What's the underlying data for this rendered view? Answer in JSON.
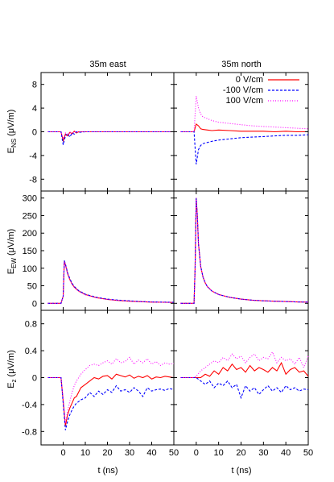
{
  "figure": {
    "column_titles": [
      "35m east",
      "35m north"
    ],
    "xlabel": "t (ns)",
    "xlim": [
      -10,
      50
    ],
    "xticks": [
      0,
      10,
      20,
      30,
      40,
      50
    ],
    "legend": {
      "position": "top-right of upper-right panel",
      "entries": [
        "0 V/cm",
        "-100 V/cm",
        "100 V/cm"
      ]
    },
    "series_styles": [
      {
        "name": "0 V/cm",
        "color": "#ff0000",
        "dash": "solid"
      },
      {
        "name": "-100 V/cm",
        "color": "#0000ff",
        "dash": "dashed"
      },
      {
        "name": "100 V/cm",
        "color": "#ff00ff",
        "dash": "dotted"
      }
    ]
  },
  "rows": [
    {
      "ylabel": "E",
      "ylabel_sub": "NS",
      "ylabel_unit": "(μV/m)",
      "ylim": [
        -10,
        10
      ],
      "yticks": [
        -8,
        -4,
        0,
        4,
        8
      ]
    },
    {
      "ylabel": "E",
      "ylabel_sub": "EW",
      "ylabel_unit": "(μV/m)",
      "ylim": [
        -20,
        320
      ],
      "yticks": [
        0,
        50,
        100,
        150,
        200,
        250,
        300
      ]
    },
    {
      "ylabel": "E",
      "ylabel_sub": "z",
      "ylabel_unit": "(μV/m)",
      "ylim": [
        -1,
        1
      ],
      "yticks": [
        -0.8,
        -0.4,
        0,
        0.4,
        0.8
      ]
    }
  ],
  "chart_data": [
    {
      "type": "line",
      "title": "35m east",
      "ylabel": "E_NS (μV/m)",
      "xlabel": "",
      "xlim": [
        -10,
        50
      ],
      "ylim": [
        -10,
        10
      ],
      "series": [
        {
          "name": "0 V/cm",
          "x": [
            -7,
            -1,
            0,
            1,
            2,
            3,
            4,
            5,
            6,
            7,
            10,
            15,
            20,
            30,
            40,
            50
          ],
          "y": [
            0,
            0,
            -1.5,
            -0.4,
            -0.7,
            -0.1,
            -0.3,
            0.1,
            -0.2,
            0,
            0,
            0,
            0,
            0,
            0,
            0
          ]
        },
        {
          "name": "-100 V/cm",
          "x": [
            -7,
            -1,
            0,
            1,
            2,
            3,
            4,
            5,
            6,
            7,
            10,
            15,
            20,
            30,
            40,
            50
          ],
          "y": [
            0,
            0,
            -2.2,
            -0.7,
            -0.3,
            -0.9,
            -0.2,
            -0.4,
            0,
            -0.1,
            0,
            0,
            0,
            0,
            0,
            0
          ]
        },
        {
          "name": "100 V/cm",
          "x": [
            -7,
            -1,
            0,
            1,
            2,
            3,
            4,
            5,
            6,
            7,
            10,
            15,
            20,
            30,
            40,
            50
          ],
          "y": [
            0,
            0,
            -1.2,
            -0.2,
            -0.5,
            0,
            -0.4,
            0.1,
            -0.1,
            0,
            0,
            0,
            0,
            0,
            0,
            0
          ]
        }
      ]
    },
    {
      "type": "line",
      "title": "35m north",
      "ylabel": "E_NS (μV/m)",
      "xlabel": "",
      "xlim": [
        -10,
        50
      ],
      "ylim": [
        -10,
        10
      ],
      "series": [
        {
          "name": "0 V/cm",
          "x": [
            -7,
            -1,
            0,
            1,
            2,
            3,
            5,
            7,
            10,
            15,
            20,
            25,
            30,
            35,
            40,
            45,
            50
          ],
          "y": [
            0,
            0,
            1.3,
            1.0,
            0.5,
            0.4,
            0.3,
            0.2,
            0.3,
            0.2,
            0.1,
            0.1,
            0.1,
            0,
            0.1,
            0,
            0
          ]
        },
        {
          "name": "-100 V/cm",
          "x": [
            -7,
            -1,
            0,
            1,
            2,
            3,
            5,
            7,
            10,
            15,
            20,
            25,
            30,
            35,
            40,
            45,
            50
          ],
          "y": [
            0,
            0,
            -5.5,
            -3.0,
            -2.3,
            -2.0,
            -1.8,
            -1.6,
            -1.4,
            -1.2,
            -1.0,
            -0.9,
            -0.8,
            -0.7,
            -0.6,
            -0.6,
            -0.5
          ]
        },
        {
          "name": "100 V/cm",
          "x": [
            -7,
            -1,
            0,
            1,
            2,
            3,
            5,
            7,
            10,
            15,
            20,
            25,
            30,
            35,
            40,
            45,
            50
          ],
          "y": [
            0,
            0,
            6.0,
            4.0,
            3.0,
            2.5,
            2.2,
            1.9,
            1.6,
            1.4,
            1.2,
            1.0,
            0.9,
            0.8,
            0.7,
            0.6,
            0.5
          ]
        }
      ]
    },
    {
      "type": "line",
      "title": "35m east",
      "ylabel": "E_EW (μV/m)",
      "xlabel": "",
      "xlim": [
        -10,
        50
      ],
      "ylim": [
        -20,
        320
      ],
      "series": [
        {
          "name": "0 V/cm",
          "x": [
            -7,
            -2,
            -1,
            0,
            0.5,
            1,
            2,
            3,
            4,
            5,
            7,
            10,
            15,
            20,
            25,
            30,
            35,
            40,
            45,
            50
          ],
          "y": [
            0,
            0,
            0,
            20,
            120,
            110,
            85,
            68,
            55,
            46,
            35,
            25,
            16,
            11,
            8,
            6,
            4.5,
            3.5,
            3,
            2.5
          ]
        },
        {
          "name": "-100 V/cm",
          "x": [
            -7,
            -2,
            -1,
            0,
            0.5,
            1,
            2,
            3,
            4,
            5,
            7,
            10,
            15,
            20,
            25,
            30,
            35,
            40,
            45,
            50
          ],
          "y": [
            0,
            0,
            0,
            20,
            122,
            112,
            87,
            70,
            57,
            48,
            36,
            26,
            17,
            12,
            9,
            7,
            5,
            4,
            3.5,
            3
          ]
        },
        {
          "name": "100 V/cm",
          "x": [
            -7,
            -2,
            -1,
            0,
            0.5,
            1,
            2,
            3,
            4,
            5,
            7,
            10,
            15,
            20,
            25,
            30,
            35,
            40,
            45,
            50
          ],
          "y": [
            0,
            0,
            0,
            20,
            119,
            108,
            83,
            66,
            54,
            45,
            34,
            24,
            16,
            11,
            8,
            6,
            4.5,
            3.5,
            3,
            2.5
          ]
        }
      ]
    },
    {
      "type": "line",
      "title": "35m north",
      "ylabel": "E_EW (μV/m)",
      "xlabel": "t (ns)",
      "xlim": [
        -10,
        50
      ],
      "ylim": [
        -20,
        320
      ],
      "series": [
        {
          "name": "0 V/cm",
          "x": [
            -7,
            -2,
            -1,
            -0.5,
            0,
            0.5,
            1,
            2,
            3,
            4,
            5,
            7,
            10,
            15,
            20,
            25,
            30,
            35,
            40,
            45,
            50
          ],
          "y": [
            0,
            0,
            0,
            100,
            300,
            250,
            170,
            105,
            75,
            58,
            47,
            35,
            25,
            17,
            12,
            9,
            7,
            6,
            5,
            4,
            3.5
          ]
        },
        {
          "name": "-100 V/cm",
          "x": [
            -7,
            -2,
            -1,
            -0.5,
            0,
            0.5,
            1,
            2,
            3,
            4,
            5,
            7,
            10,
            15,
            20,
            25,
            30,
            35,
            40,
            45,
            50
          ],
          "y": [
            0,
            0,
            0,
            100,
            300,
            250,
            170,
            105,
            75,
            58,
            47,
            35,
            25,
            17,
            12,
            9,
            7,
            6,
            5,
            4,
            3.5
          ]
        },
        {
          "name": "100 V/cm",
          "x": [
            -7,
            -2,
            -1,
            -0.5,
            0,
            0.5,
            1,
            2,
            3,
            4,
            5,
            7,
            10,
            15,
            20,
            25,
            30,
            35,
            40,
            45,
            50
          ],
          "y": [
            0,
            0,
            0,
            100,
            300,
            250,
            170,
            105,
            75,
            58,
            47,
            35,
            25,
            17,
            12,
            9,
            7,
            6,
            5,
            4,
            3.5
          ]
        }
      ]
    },
    {
      "type": "line",
      "title": "35m east",
      "ylabel": "E_z (μV/m)",
      "xlabel": "t (ns)",
      "xlim": [
        -10,
        50
      ],
      "ylim": [
        -1,
        1
      ],
      "series": [
        {
          "name": "0 V/cm",
          "x": [
            -7,
            -2,
            -1,
            0,
            1,
            2,
            3,
            4,
            5,
            6,
            8,
            10,
            12,
            14,
            16,
            18,
            20,
            22,
            24,
            26,
            28,
            30,
            32,
            34,
            36,
            38,
            40,
            42,
            44,
            46,
            48,
            50
          ],
          "y": [
            0,
            0,
            0,
            -0.35,
            -0.72,
            -0.55,
            -0.45,
            -0.38,
            -0.3,
            -0.28,
            -0.15,
            -0.1,
            -0.05,
            0,
            -0.02,
            0.02,
            0.03,
            -0.02,
            0.05,
            0.03,
            0.01,
            0.04,
            -0.01,
            0.02,
            0,
            0.03,
            -0.02,
            0.01,
            0,
            0.02,
            0.01,
            0
          ]
        },
        {
          "name": "-100 V/cm",
          "x": [
            -7,
            -2,
            -1,
            0,
            1,
            2,
            3,
            4,
            5,
            6,
            8,
            10,
            12,
            14,
            16,
            18,
            20,
            22,
            24,
            26,
            28,
            30,
            32,
            34,
            36,
            38,
            40,
            42,
            44,
            46,
            48,
            50
          ],
          "y": [
            0,
            0,
            0,
            -0.38,
            -0.78,
            -0.65,
            -0.55,
            -0.48,
            -0.42,
            -0.38,
            -0.33,
            -0.3,
            -0.22,
            -0.28,
            -0.2,
            -0.25,
            -0.18,
            -0.22,
            -0.12,
            -0.2,
            -0.18,
            -0.22,
            -0.15,
            -0.2,
            -0.28,
            -0.15,
            -0.2,
            -0.18,
            -0.17,
            -0.19,
            -0.16,
            -0.18
          ]
        },
        {
          "name": "100 V/cm",
          "x": [
            -7,
            -2,
            -1,
            0,
            1,
            2,
            3,
            4,
            5,
            6,
            8,
            10,
            12,
            14,
            16,
            18,
            20,
            22,
            24,
            26,
            28,
            30,
            32,
            34,
            36,
            38,
            40,
            42,
            44,
            46,
            48,
            50
          ],
          "y": [
            0,
            0,
            0,
            -0.3,
            -0.68,
            -0.5,
            -0.35,
            -0.22,
            -0.12,
            -0.05,
            0.05,
            0.12,
            0.18,
            0.2,
            0.18,
            0.22,
            0.25,
            0.2,
            0.28,
            0.22,
            0.24,
            0.3,
            0.2,
            0.26,
            0.22,
            0.28,
            0.2,
            0.24,
            0.18,
            0.22,
            0.2,
            0.21
          ]
        }
      ]
    },
    {
      "type": "line",
      "title": "35m north",
      "ylabel": "E_z (μV/m)",
      "xlabel": "t (ns)",
      "xlim": [
        -10,
        50
      ],
      "ylim": [
        -1,
        1
      ],
      "series": [
        {
          "name": "0 V/cm",
          "x": [
            -7,
            -2,
            -1,
            0,
            2,
            4,
            6,
            8,
            10,
            12,
            14,
            16,
            18,
            20,
            22,
            24,
            26,
            28,
            30,
            32,
            34,
            36,
            38,
            40,
            42,
            44,
            46,
            48,
            50
          ],
          "y": [
            0,
            0,
            0,
            0,
            0,
            0.05,
            0.02,
            0.1,
            0.05,
            0.15,
            0.1,
            0.2,
            0.12,
            0.15,
            0.08,
            0.18,
            0.1,
            0.15,
            0.12,
            0.08,
            0.15,
            0.1,
            0.22,
            0.05,
            0.12,
            0.15,
            0.08,
            0.1,
            0.02
          ]
        },
        {
          "name": "-100 V/cm",
          "x": [
            -7,
            -2,
            -1,
            0,
            2,
            4,
            6,
            8,
            10,
            12,
            14,
            16,
            18,
            20,
            22,
            24,
            26,
            28,
            30,
            32,
            34,
            36,
            38,
            40,
            42,
            44,
            46,
            48,
            50
          ],
          "y": [
            0,
            0,
            0,
            0,
            -0.05,
            -0.1,
            -0.05,
            -0.15,
            -0.08,
            -0.12,
            -0.05,
            -0.15,
            -0.1,
            -0.3,
            -0.12,
            -0.2,
            -0.15,
            -0.25,
            -0.18,
            -0.12,
            -0.2,
            -0.15,
            -0.22,
            -0.12,
            -0.18,
            -0.15,
            -0.2,
            -0.17,
            -0.18
          ]
        },
        {
          "name": "100 V/cm",
          "x": [
            -7,
            -2,
            -1,
            0,
            2,
            4,
            6,
            8,
            10,
            12,
            14,
            16,
            18,
            20,
            22,
            24,
            26,
            28,
            30,
            32,
            34,
            36,
            38,
            40,
            42,
            44,
            46,
            48,
            50
          ],
          "y": [
            0,
            0,
            0,
            0.02,
            0.1,
            0.15,
            0.2,
            0.25,
            0.22,
            0.3,
            0.25,
            0.35,
            0.28,
            0.32,
            0.22,
            0.3,
            0.35,
            0.25,
            0.3,
            0.28,
            0.38,
            0.22,
            0.3,
            0.25,
            0.28,
            0.2,
            0.3,
            0.15,
            0.32
          ]
        }
      ]
    }
  ]
}
